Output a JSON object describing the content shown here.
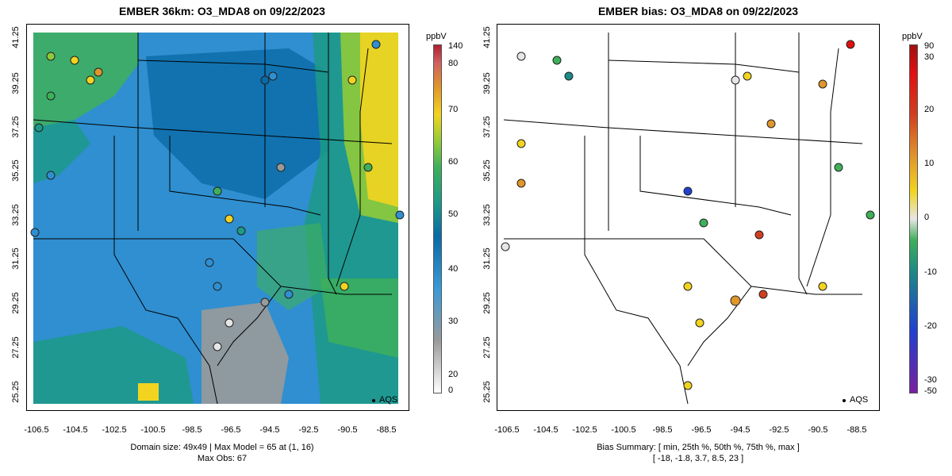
{
  "left": {
    "title": "EMBER 36km: O3_MDA8 on 09/22/2023",
    "footer_line1": "Domain size: 49x49 | Max Model = 65 at (1, 16)",
    "footer_line2": "Max Obs: 67",
    "legend_label": "AQS",
    "colorbar": {
      "title": "ppbV",
      "labels": [
        "140",
        "80",
        "70",
        "60",
        "50",
        "40",
        "30",
        "20",
        "0"
      ]
    }
  },
  "right": {
    "title": "EMBER bias: O3_MDA8 on 09/22/2023",
    "footer_line1": "Bias Summary: [ min, 25th %, 50th %, 75th %, max ]",
    "footer_line2": "[ -18,   -1.8,   3.7,   8.5,   23 ]",
    "legend_label": "AQS",
    "colorbar": {
      "title": "ppbV",
      "labels": [
        "90",
        "30",
        "20",
        "10",
        "0",
        "-10",
        "-20",
        "-30",
        "-50"
      ]
    }
  },
  "axes": {
    "x_ticks": [
      "-106.5",
      "-104.5",
      "-102.5",
      "-100.5",
      "-98.5",
      "-96.5",
      "-94.5",
      "-92.5",
      "-90.5",
      "-88.5"
    ],
    "y_ticks": [
      "41.25",
      "39.25",
      "37.25",
      "35.25",
      "33.25",
      "31.25",
      "29.25",
      "27.25",
      "25.25"
    ]
  },
  "colors": {
    "ozone_scale": [
      "#ffffff",
      "#9a9a9a",
      "#2f8fd0",
      "#0a6aa6",
      "#1c9a86",
      "#3fb05a",
      "#8fca3a",
      "#f2d420",
      "#e0962a",
      "#b02030"
    ],
    "bias_scale": [
      "#7a1fa0",
      "#2040d0",
      "#1c8a86",
      "#3fb05a",
      "#e6e6e6",
      "#f2d420",
      "#e0962a",
      "#d04020",
      "#e01010"
    ]
  }
}
